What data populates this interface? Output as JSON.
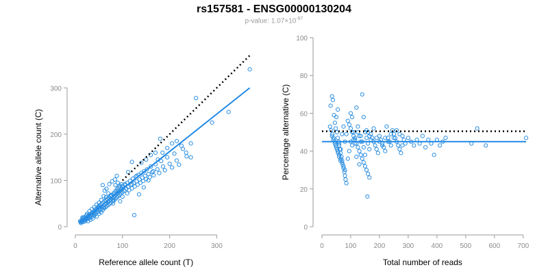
{
  "title": "rs157581 - ENSG00000130204",
  "subtitle": {
    "prefix": "p-value: 1.07×10",
    "exponent": "-97"
  },
  "colors": {
    "points": "#2b8ee0",
    "fit_line": "#1e88e5",
    "reference_line": "#000000",
    "axis": "#9a9a9a"
  },
  "chart_data": [
    {
      "type": "scatter",
      "xlabel": "Reference allele count (T)",
      "ylabel": "Alternative allele count (C)",
      "xlim": [
        0,
        340
      ],
      "ylim": [
        0,
        330
      ],
      "xticks": [
        0,
        100,
        200,
        300
      ],
      "yticks": [
        0,
        100,
        200,
        300
      ],
      "fit_line": {
        "x": [
          10,
          370
        ],
        "y": [
          9,
          300
        ]
      },
      "reference_line": {
        "style": "dotted",
        "x": [
          100,
          370
        ],
        "y": [
          100,
          370
        ]
      },
      "points": [
        [
          10,
          12
        ],
        [
          12,
          8
        ],
        [
          14,
          15
        ],
        [
          15,
          10
        ],
        [
          16,
          18
        ],
        [
          17,
          13
        ],
        [
          18,
          20
        ],
        [
          19,
          11
        ],
        [
          20,
          16
        ],
        [
          21,
          22
        ],
        [
          22,
          14
        ],
        [
          23,
          19
        ],
        [
          24,
          25
        ],
        [
          25,
          17
        ],
        [
          26,
          21
        ],
        [
          27,
          12
        ],
        [
          28,
          24
        ],
        [
          29,
          18
        ],
        [
          30,
          27
        ],
        [
          31,
          20
        ],
        [
          32,
          15
        ],
        [
          33,
          26
        ],
        [
          34,
          29
        ],
        [
          35,
          22
        ],
        [
          36,
          31
        ],
        [
          37,
          18
        ],
        [
          38,
          28
        ],
        [
          39,
          33
        ],
        [
          40,
          24
        ],
        [
          41,
          35
        ],
        [
          42,
          27
        ],
        [
          43,
          38
        ],
        [
          44,
          30
        ],
        [
          45,
          22
        ],
        [
          46,
          36
        ],
        [
          47,
          40
        ],
        [
          48,
          32
        ],
        [
          49,
          44
        ],
        [
          50,
          28
        ],
        [
          51,
          42
        ],
        [
          52,
          35
        ],
        [
          53,
          47
        ],
        [
          54,
          38
        ],
        [
          55,
          31
        ],
        [
          56,
          50
        ],
        [
          57,
          43
        ],
        [
          58,
          36
        ],
        [
          59,
          52
        ],
        [
          60,
          46
        ],
        [
          61,
          40
        ],
        [
          62,
          55
        ],
        [
          63,
          48
        ],
        [
          64,
          42
        ],
        [
          65,
          58
        ],
        [
          66,
          50
        ],
        [
          67,
          45
        ],
        [
          68,
          60
        ],
        [
          69,
          53
        ],
        [
          70,
          47
        ],
        [
          71,
          63
        ],
        [
          72,
          56
        ],
        [
          73,
          50
        ],
        [
          74,
          66
        ],
        [
          75,
          59
        ],
        [
          76,
          52
        ],
        [
          77,
          68
        ],
        [
          78,
          61
        ],
        [
          79,
          55
        ],
        [
          80,
          71
        ],
        [
          81,
          64
        ],
        [
          82,
          57
        ],
        [
          83,
          74
        ],
        [
          84,
          67
        ],
        [
          85,
          60
        ],
        [
          86,
          78
        ],
        [
          87,
          70
        ],
        [
          88,
          63
        ],
        [
          89,
          82
        ],
        [
          90,
          73
        ],
        [
          91,
          66
        ],
        [
          92,
          85
        ],
        [
          93,
          76
        ],
        [
          94,
          69
        ],
        [
          95,
          88
        ],
        [
          96,
          79
        ],
        [
          97,
          72
        ],
        [
          98,
          92
        ],
        [
          99,
          82
        ],
        [
          100,
          75
        ],
        [
          102,
          86
        ],
        [
          104,
          78
        ],
        [
          106,
          90
        ],
        [
          108,
          82
        ],
        [
          110,
          95
        ],
        [
          112,
          86
        ],
        [
          114,
          79
        ],
        [
          116,
          99
        ],
        [
          118,
          90
        ],
        [
          120,
          83
        ],
        [
          122,
          104
        ],
        [
          124,
          94
        ],
        [
          126,
          87
        ],
        [
          128,
          108
        ],
        [
          130,
          98
        ],
        [
          132,
          91
        ],
        [
          134,
          112
        ],
        [
          136,
          102
        ],
        [
          138,
          95
        ],
        [
          140,
          116
        ],
        [
          142,
          106
        ],
        [
          144,
          99
        ],
        [
          146,
          120
        ],
        [
          148,
          110
        ],
        [
          150,
          103
        ],
        [
          152,
          124
        ],
        [
          155,
          114
        ],
        [
          158,
          107
        ],
        [
          160,
          130
        ],
        [
          163,
          118
        ],
        [
          166,
          111
        ],
        [
          170,
          135
        ],
        [
          174,
          124
        ],
        [
          178,
          116
        ],
        [
          182,
          142
        ],
        [
          186,
          130
        ],
        [
          190,
          122
        ],
        [
          195,
          150
        ],
        [
          200,
          136
        ],
        [
          205,
          128
        ],
        [
          210,
          158
        ],
        [
          215,
          143
        ],
        [
          220,
          134
        ],
        [
          228,
          168
        ],
        [
          236,
          152
        ],
        [
          245,
          180
        ],
        [
          256,
          278
        ],
        [
          290,
          225
        ],
        [
          325,
          248
        ],
        [
          370,
          340
        ],
        [
          180,
          190
        ],
        [
          170,
          160
        ],
        [
          160,
          155
        ],
        [
          150,
          145
        ],
        [
          140,
          138
        ],
        [
          130,
          110
        ],
        [
          120,
          140
        ],
        [
          112,
          118
        ],
        [
          105,
          92
        ],
        [
          100,
          65
        ],
        [
          95,
          55
        ],
        [
          90,
          95
        ],
        [
          85,
          90
        ],
        [
          80,
          50
        ],
        [
          75,
          68
        ],
        [
          70,
          72
        ],
        [
          65,
          64
        ],
        [
          60,
          66
        ],
        [
          55,
          58
        ],
        [
          50,
          52
        ],
        [
          45,
          48
        ],
        [
          40,
          42
        ],
        [
          35,
          38
        ],
        [
          30,
          34
        ],
        [
          25,
          28
        ],
        [
          22,
          18
        ],
        [
          18,
          16
        ],
        [
          15,
          20
        ],
        [
          13,
          12
        ],
        [
          11,
          10
        ],
        [
          125,
          25
        ],
        [
          135,
          70
        ],
        [
          145,
          85
        ],
        [
          155,
          100
        ],
        [
          165,
          120
        ],
        [
          175,
          145
        ],
        [
          185,
          160
        ],
        [
          195,
          170
        ],
        [
          205,
          180
        ],
        [
          215,
          185
        ],
        [
          225,
          175
        ],
        [
          235,
          160
        ],
        [
          245,
          150
        ],
        [
          120,
          92
        ],
        [
          110,
          72
        ],
        [
          100,
          88
        ],
        [
          90,
          78
        ],
        [
          80,
          58
        ],
        [
          70,
          54
        ],
        [
          60,
          42
        ],
        [
          50,
          38
        ],
        [
          40,
          30
        ],
        [
          30,
          22
        ],
        [
          20,
          14
        ],
        [
          58,
          90
        ],
        [
          62,
          78
        ],
        [
          66,
          82
        ],
        [
          72,
          92
        ],
        [
          78,
          98
        ],
        [
          84,
          102
        ],
        [
          88,
          110
        ]
      ]
    },
    {
      "type": "scatter",
      "xlabel": "Total number of reads",
      "ylabel": "Percentage alternative (C)",
      "xlim": [
        0,
        710
      ],
      "ylim": [
        0,
        100
      ],
      "xticks": [
        0,
        100,
        200,
        300,
        400,
        500,
        600,
        700
      ],
      "yticks": [
        0,
        20,
        40,
        60,
        80,
        100
      ],
      "fit_line": {
        "x": [
          0,
          710
        ],
        "y": [
          45,
          45
        ]
      },
      "reference_line": {
        "style": "dotted",
        "x": [
          0,
          710
        ],
        "y": [
          50.5,
          50.5
        ]
      },
      "points": [
        [
          30,
          64
        ],
        [
          35,
          69
        ],
        [
          38,
          67
        ],
        [
          42,
          59
        ],
        [
          45,
          55
        ],
        [
          48,
          52
        ],
        [
          52,
          50
        ],
        [
          55,
          47
        ],
        [
          58,
          45
        ],
        [
          60,
          43
        ],
        [
          62,
          41
        ],
        [
          65,
          39
        ],
        [
          68,
          37
        ],
        [
          70,
          35
        ],
        [
          72,
          33
        ],
        [
          75,
          31
        ],
        [
          78,
          29
        ],
        [
          80,
          27
        ],
        [
          82,
          25
        ],
        [
          85,
          23
        ],
        [
          35,
          48
        ],
        [
          40,
          46
        ],
        [
          45,
          44
        ],
        [
          50,
          42
        ],
        [
          55,
          40
        ],
        [
          60,
          38
        ],
        [
          65,
          36
        ],
        [
          70,
          34
        ],
        [
          75,
          32
        ],
        [
          80,
          30
        ],
        [
          28,
          53
        ],
        [
          32,
          51
        ],
        [
          36,
          49
        ],
        [
          40,
          47
        ],
        [
          44,
          45
        ],
        [
          48,
          43
        ],
        [
          52,
          41
        ],
        [
          56,
          39
        ],
        [
          60,
          37
        ],
        [
          64,
          35
        ],
        [
          90,
          56
        ],
        [
          95,
          54
        ],
        [
          100,
          52
        ],
        [
          105,
          50
        ],
        [
          110,
          48
        ],
        [
          115,
          46
        ],
        [
          120,
          44
        ],
        [
          125,
          42
        ],
        [
          130,
          40
        ],
        [
          135,
          38
        ],
        [
          140,
          36
        ],
        [
          145,
          34
        ],
        [
          150,
          32
        ],
        [
          155,
          30
        ],
        [
          160,
          28
        ],
        [
          165,
          26
        ],
        [
          100,
          60
        ],
        [
          105,
          58
        ],
        [
          110,
          46
        ],
        [
          115,
          44
        ],
        [
          120,
          63
        ],
        [
          125,
          50
        ],
        [
          130,
          48
        ],
        [
          135,
          45
        ],
        [
          140,
          70
        ],
        [
          145,
          58
        ],
        [
          150,
          50
        ],
        [
          155,
          47
        ],
        [
          158,
          16
        ],
        [
          160,
          44
        ],
        [
          165,
          41
        ],
        [
          170,
          49
        ],
        [
          175,
          47
        ],
        [
          180,
          45
        ],
        [
          185,
          43
        ],
        [
          190,
          41
        ],
        [
          195,
          39
        ],
        [
          200,
          48
        ],
        [
          205,
          46
        ],
        [
          210,
          44
        ],
        [
          215,
          42
        ],
        [
          220,
          40
        ],
        [
          225,
          53
        ],
        [
          230,
          47
        ],
        [
          235,
          45
        ],
        [
          240,
          43
        ],
        [
          245,
          51
        ],
        [
          250,
          49
        ],
        [
          255,
          47
        ],
        [
          260,
          45
        ],
        [
          265,
          43
        ],
        [
          270,
          41
        ],
        [
          275,
          39
        ],
        [
          280,
          48
        ],
        [
          285,
          46
        ],
        [
          290,
          44
        ],
        [
          300,
          47
        ],
        [
          310,
          45
        ],
        [
          320,
          43
        ],
        [
          330,
          46
        ],
        [
          340,
          44
        ],
        [
          350,
          48
        ],
        [
          360,
          42
        ],
        [
          370,
          46
        ],
        [
          380,
          44
        ],
        [
          390,
          38
        ],
        [
          400,
          46
        ],
        [
          410,
          43
        ],
        [
          420,
          45
        ],
        [
          430,
          47
        ],
        [
          520,
          44
        ],
        [
          540,
          52
        ],
        [
          570,
          43
        ],
        [
          710,
          47
        ],
        [
          50,
          58
        ],
        [
          55,
          62
        ],
        [
          60,
          44
        ],
        [
          65,
          41
        ],
        [
          70,
          49
        ],
        [
          75,
          53
        ],
        [
          80,
          45
        ],
        [
          85,
          49
        ],
        [
          90,
          36
        ],
        [
          95,
          40
        ],
        [
          100,
          45
        ],
        [
          105,
          43
        ],
        [
          110,
          50
        ],
        [
          115,
          47
        ],
        [
          120,
          37
        ],
        [
          125,
          53
        ],
        [
          130,
          33
        ],
        [
          135,
          48
        ],
        [
          140,
          45
        ],
        [
          145,
          42
        ],
        [
          150,
          38
        ],
        [
          155,
          51
        ],
        [
          160,
          50
        ],
        [
          165,
          48
        ],
        [
          170,
          46
        ],
        [
          180,
          52
        ],
        [
          190,
          47
        ],
        [
          200,
          45
        ],
        [
          210,
          43
        ],
        [
          220,
          47
        ],
        [
          230,
          45
        ],
        [
          240,
          49
        ],
        [
          250,
          47
        ],
        [
          260,
          51
        ],
        [
          270,
          49
        ],
        [
          280,
          43
        ]
      ]
    }
  ]
}
